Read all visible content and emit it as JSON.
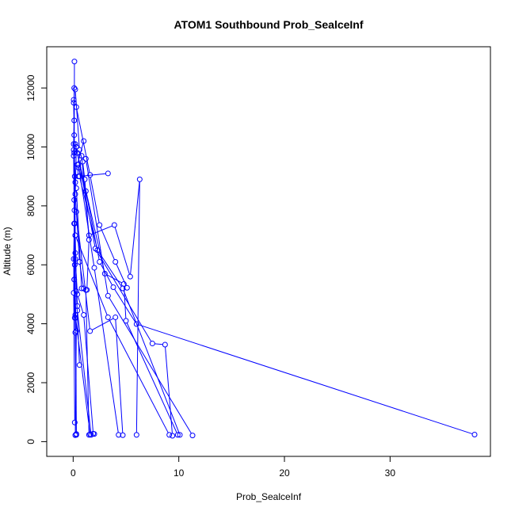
{
  "chart_data": {
    "type": "line",
    "title": "ATOM1 Southbound Prob_SealceInf",
    "xlabel": "Prob_SealceInf",
    "ylabel": "Altitude (m)",
    "xlim": [
      -2.5,
      39.5
    ],
    "ylim": [
      -500,
      13400
    ],
    "xticks": [
      0,
      10,
      20,
      30
    ],
    "yticks": [
      0,
      2000,
      4000,
      6000,
      8000,
      10000,
      12000
    ],
    "grid": false,
    "legend": "none",
    "series_color": "#0000ff",
    "series": [
      {
        "x": [
          0.12,
          0.1,
          0.15,
          0.2,
          1.6,
          2.0
        ],
        "y": [
          12900,
          9800,
          7400,
          4300,
          250,
          260
        ]
      },
      {
        "x": [
          0.1,
          0.05,
          0.12,
          0.1,
          0.3,
          0.2
        ],
        "y": [
          12000,
          9700,
          7850,
          5500,
          3750,
          220
        ]
      },
      {
        "x": [
          0.2,
          0.6,
          0.9,
          1.1,
          1.5,
          1.3
        ],
        "y": [
          11950,
          9900,
          9500,
          8900,
          6850,
          5150
        ]
      },
      {
        "x": [
          0.3,
          1.6,
          2.5,
          4.0,
          5.1
        ],
        "y": [
          11350,
          9050,
          7350,
          6100,
          5220
        ]
      },
      {
        "x": [
          0.05,
          0.1,
          0.15,
          0.2,
          0.3,
          0.6
        ],
        "y": [
          11600,
          10400,
          9000,
          7000,
          5100,
          2600
        ]
      },
      {
        "x": [
          0.05,
          0.1,
          0.05,
          0.2,
          0.1,
          0.05,
          0.15
        ],
        "y": [
          11500,
          10900,
          10100,
          8800,
          7400,
          6200,
          4200
        ]
      },
      {
        "x": [
          1.0,
          0.4,
          0.5,
          3.3
        ],
        "y": [
          10200,
          9400,
          9000,
          9100
        ]
      },
      {
        "x": [
          0.5,
          2.0,
          4.3
        ],
        "y": [
          9400,
          5900,
          230
        ]
      },
      {
        "x": [
          0.8,
          1.5,
          3.9,
          5.4,
          6.3,
          6.0
        ],
        "y": [
          9700,
          7000,
          7350,
          5600,
          8900,
          230
        ]
      },
      {
        "x": [
          0.3,
          0.2,
          0.6,
          1.0
        ],
        "y": [
          10000,
          8400,
          6100,
          5200
        ]
      },
      {
        "x": [
          0.2,
          3.0,
          4.8,
          5.0,
          9.9
        ],
        "y": [
          10100,
          5700,
          5350,
          4100,
          230
        ]
      },
      {
        "x": [
          0.5,
          1.2,
          2.5,
          3.8,
          6.0,
          38.0
        ],
        "y": [
          9300,
          8500,
          6100,
          5240,
          3990,
          240
        ]
      },
      {
        "x": [
          0.4,
          2.1,
          7.5,
          8.7,
          9.4
        ],
        "y": [
          9800,
          6550,
          3330,
          3290,
          200
        ]
      },
      {
        "x": [
          0.6,
          2.3,
          4.7,
          10.1
        ],
        "y": [
          9000,
          6500,
          5200,
          230
        ]
      },
      {
        "x": [
          1.2,
          3.3,
          11.3
        ],
        "y": [
          9600,
          4950,
          210
        ]
      },
      {
        "x": [
          0.3,
          0.8,
          1.2,
          1.5
        ],
        "y": [
          8600,
          5200,
          5150,
          230
        ]
      },
      {
        "x": [
          0.2,
          0.4,
          0.4,
          1.7
        ],
        "y": [
          6400,
          4600,
          4450,
          230
        ]
      },
      {
        "x": [
          0.1,
          0.15,
          0.25,
          0.3
        ],
        "y": [
          8200,
          6000,
          4200,
          260
        ]
      },
      {
        "x": [
          0.05,
          0.1,
          0.05,
          0.15
        ],
        "y": [
          9900,
          7400,
          5050,
          650
        ]
      },
      {
        "x": [
          0.3,
          1.6,
          4.0,
          4.7
        ],
        "y": [
          7800,
          3750,
          4220,
          220
        ]
      },
      {
        "x": [
          0.2,
          3.3,
          9.1
        ],
        "y": [
          7000,
          4220,
          230
        ]
      },
      {
        "x": [
          0.2,
          0.4,
          1.0,
          1.9
        ],
        "y": [
          6200,
          5000,
          4300,
          270
        ]
      },
      {
        "x": [
          0.1,
          0.2,
          0.3
        ],
        "y": [
          5500,
          3700,
          230
        ]
      }
    ]
  }
}
